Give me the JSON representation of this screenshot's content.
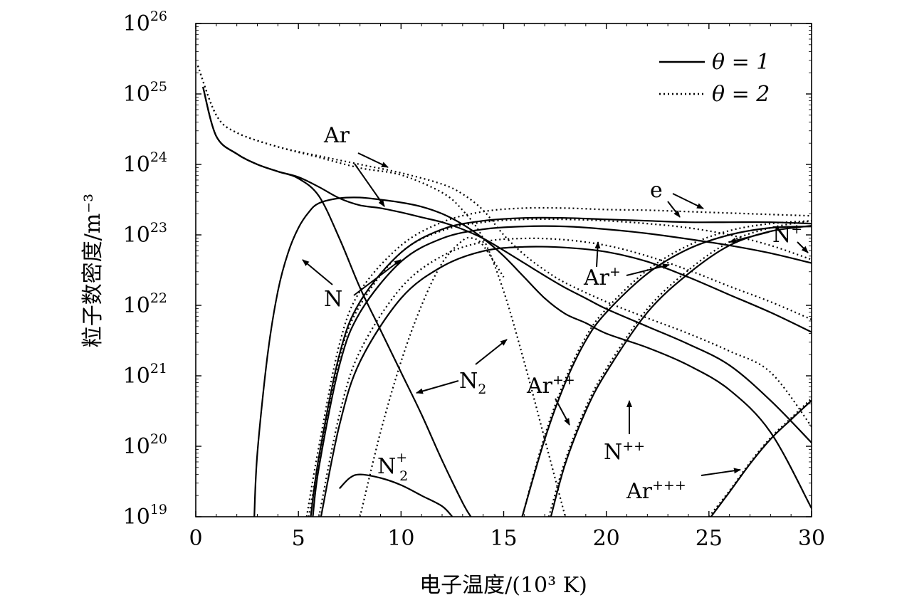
{
  "chart_data": {
    "type": "line",
    "xlabel": "电子温度/(10³ K)",
    "ylabel": "粒子数密度/m⁻³",
    "xlim": [
      0,
      30
    ],
    "ylim_log10": [
      19,
      26
    ],
    "y_scale": "log",
    "grid": false,
    "legend_position": "top-right",
    "legend": [
      {
        "label": "θ = 1",
        "style": "solid"
      },
      {
        "label": "θ = 2",
        "style": "dotted"
      }
    ],
    "x_ticks": [
      "0",
      "5",
      "10",
      "15",
      "20",
      "25",
      "30"
    ],
    "y_ticks": [
      {
        "base": "10",
        "exp": "19"
      },
      {
        "base": "10",
        "exp": "20"
      },
      {
        "base": "10",
        "exp": "21"
      },
      {
        "base": "10",
        "exp": "22"
      },
      {
        "base": "10",
        "exp": "23"
      },
      {
        "base": "10",
        "exp": "24"
      },
      {
        "base": "10",
        "exp": "25"
      },
      {
        "base": "10",
        "exp": "26"
      }
    ],
    "annotations": [
      {
        "text": "Ar",
        "sup": ""
      },
      {
        "text": "e",
        "sup": ""
      },
      {
        "text": "N",
        "sup": "+"
      },
      {
        "text": "Ar",
        "sup": "+"
      },
      {
        "text": "N",
        "sup": ""
      },
      {
        "text": "N",
        "sub": "2"
      },
      {
        "text": "Ar",
        "sup": "++"
      },
      {
        "text": "N",
        "sup": "++"
      },
      {
        "text": "N",
        "sup": "+",
        "sub": "2"
      },
      {
        "text": "Ar",
        "sup": "+++"
      }
    ],
    "series": [
      {
        "species": "N",
        "theta": 1,
        "points": [
          [
            0.35,
            25.1
          ],
          [
            1,
            24.4
          ],
          [
            2,
            24.15
          ],
          [
            3,
            24.0
          ],
          [
            4,
            23.9
          ],
          [
            5,
            23.8
          ],
          [
            6,
            23.55
          ],
          [
            7,
            22.95
          ],
          [
            8,
            22.25
          ],
          [
            9,
            21.65
          ],
          [
            10,
            21.05
          ],
          [
            11,
            20.45
          ],
          [
            12,
            19.8
          ],
          [
            13,
            19.2
          ],
          [
            13.4,
            19.0
          ]
        ]
      },
      {
        "species": "N",
        "theta": 2,
        "points": [
          [
            0.1,
            25.4
          ],
          [
            1,
            24.7
          ],
          [
            2,
            24.45
          ],
          [
            4,
            24.25
          ],
          [
            6,
            24.1
          ],
          [
            8,
            23.95
          ],
          [
            10,
            23.85
          ],
          [
            12,
            23.6
          ],
          [
            13,
            23.35
          ],
          [
            14,
            22.95
          ],
          [
            15,
            22.2
          ],
          [
            16,
            21.2
          ],
          [
            17,
            20.1
          ],
          [
            18,
            19.0
          ]
        ]
      },
      {
        "species": "Ar",
        "theta": 1,
        "points": [
          [
            0.35,
            25.1
          ],
          [
            1,
            24.4
          ],
          [
            2,
            24.15
          ],
          [
            3,
            24.0
          ],
          [
            4,
            23.9
          ],
          [
            5,
            23.82
          ],
          [
            6,
            23.68
          ],
          [
            7,
            23.52
          ],
          [
            8,
            23.42
          ],
          [
            9,
            23.38
          ],
          [
            10,
            23.32
          ],
          [
            11,
            23.25
          ],
          [
            12,
            23.18
          ],
          [
            13,
            23.08
          ],
          [
            14,
            22.95
          ],
          [
            15,
            22.78
          ],
          [
            16,
            22.6
          ],
          [
            17,
            22.42
          ],
          [
            18,
            22.25
          ],
          [
            19,
            22.1
          ],
          [
            20,
            21.95
          ],
          [
            22,
            21.7
          ],
          [
            24,
            21.45
          ],
          [
            26,
            21.15
          ],
          [
            28,
            20.65
          ],
          [
            30,
            20.05
          ]
        ]
      },
      {
        "species": "Ar",
        "theta": 2,
        "points": [
          [
            0.1,
            25.4
          ],
          [
            1,
            24.7
          ],
          [
            2,
            24.45
          ],
          [
            4,
            24.25
          ],
          [
            6,
            24.12
          ],
          [
            8,
            24.0
          ],
          [
            10,
            23.88
          ],
          [
            12,
            23.72
          ],
          [
            13,
            23.58
          ],
          [
            14,
            23.35
          ],
          [
            15,
            23.0
          ],
          [
            16,
            22.72
          ],
          [
            17,
            22.5
          ],
          [
            18,
            22.32
          ],
          [
            20,
            22.05
          ],
          [
            22,
            21.82
          ],
          [
            24,
            21.6
          ],
          [
            26,
            21.35
          ],
          [
            28,
            21.05
          ],
          [
            30,
            20.28
          ]
        ]
      },
      {
        "species": "N2",
        "theta": 1,
        "points": [
          [
            2.85,
            19.0
          ],
          [
            3,
            19.9
          ],
          [
            3.5,
            21.3
          ],
          [
            4,
            22.2
          ],
          [
            4.5,
            22.75
          ],
          [
            5,
            23.1
          ],
          [
            5.5,
            23.32
          ],
          [
            6,
            23.45
          ],
          [
            7,
            23.52
          ],
          [
            8,
            23.53
          ],
          [
            9,
            23.5
          ],
          [
            10,
            23.46
          ],
          [
            11,
            23.4
          ],
          [
            12,
            23.3
          ],
          [
            13,
            23.15
          ],
          [
            14,
            22.95
          ],
          [
            15,
            22.7
          ],
          [
            16,
            22.4
          ],
          [
            17,
            22.1
          ],
          [
            18,
            21.88
          ],
          [
            19,
            21.75
          ],
          [
            20,
            21.6
          ],
          [
            22,
            21.4
          ],
          [
            24,
            21.15
          ],
          [
            26,
            20.8
          ],
          [
            28,
            20.2
          ],
          [
            30,
            19.12
          ]
        ]
      },
      {
        "species": "N2+",
        "theta": 1,
        "points": [
          [
            7,
            19.4
          ],
          [
            7.5,
            19.55
          ],
          [
            8,
            19.6
          ],
          [
            9,
            19.55
          ],
          [
            10,
            19.45
          ],
          [
            11,
            19.3
          ],
          [
            12,
            19.15
          ],
          [
            12.5,
            19.0
          ]
        ]
      },
      {
        "species": "N2+",
        "theta": 2,
        "points": [
          [
            8,
            19.0
          ],
          [
            9,
            20.2
          ],
          [
            10,
            21.2
          ],
          [
            11,
            22.0
          ],
          [
            12,
            22.6
          ],
          [
            13,
            22.92
          ],
          [
            13.5,
            22.95
          ],
          [
            14,
            22.85
          ],
          [
            15,
            22.4
          ]
        ]
      },
      {
        "species": "e",
        "theta": 1,
        "points": [
          [
            5.6,
            19.0
          ],
          [
            6,
            19.85
          ],
          [
            7,
            21.3
          ],
          [
            8,
            22.05
          ],
          [
            10,
            22.75
          ],
          [
            12,
            23.08
          ],
          [
            14,
            23.2
          ],
          [
            16,
            23.24
          ],
          [
            18,
            23.24
          ],
          [
            20,
            23.22
          ],
          [
            22,
            23.2
          ],
          [
            24,
            23.18
          ],
          [
            26,
            23.18
          ],
          [
            28,
            23.18
          ],
          [
            30,
            23.16
          ]
        ]
      },
      {
        "species": "e",
        "theta": 2,
        "points": [
          [
            5.4,
            19.0
          ],
          [
            6,
            20.0
          ],
          [
            7,
            21.45
          ],
          [
            8,
            22.2
          ],
          [
            10,
            22.85
          ],
          [
            12,
            23.18
          ],
          [
            14,
            23.33
          ],
          [
            16,
            23.38
          ],
          [
            18,
            23.38
          ],
          [
            20,
            23.36
          ],
          [
            22,
            23.35
          ],
          [
            24,
            23.33
          ],
          [
            26,
            23.31
          ],
          [
            28,
            23.29
          ],
          [
            30,
            23.27
          ]
        ]
      },
      {
        "species": "N+",
        "theta": 1,
        "points": [
          [
            5.7,
            19.0
          ],
          [
            6,
            19.7
          ],
          [
            7,
            21.15
          ],
          [
            8,
            21.9
          ],
          [
            10,
            22.62
          ],
          [
            12,
            22.95
          ],
          [
            14,
            23.08
          ],
          [
            16,
            23.12
          ],
          [
            18,
            23.12
          ],
          [
            20,
            23.08
          ],
          [
            22,
            23.02
          ],
          [
            24,
            22.94
          ],
          [
            26,
            22.85
          ],
          [
            28,
            22.74
          ],
          [
            30,
            22.6
          ]
        ]
      },
      {
        "species": "N+",
        "theta": 2,
        "points": [
          [
            5.5,
            19.0
          ],
          [
            6,
            19.8
          ],
          [
            7,
            21.25
          ],
          [
            8,
            22.0
          ],
          [
            10,
            22.75
          ],
          [
            12,
            23.06
          ],
          [
            14,
            23.18
          ],
          [
            16,
            23.22
          ],
          [
            18,
            23.22
          ],
          [
            20,
            23.2
          ],
          [
            22,
            23.16
          ],
          [
            24,
            23.1
          ],
          [
            26,
            23.0
          ],
          [
            28,
            22.85
          ],
          [
            30,
            22.65
          ]
        ]
      },
      {
        "species": "Ar+",
        "theta": 1,
        "points": [
          [
            6.1,
            19.0
          ],
          [
            7,
            20.3
          ],
          [
            8,
            21.2
          ],
          [
            10,
            22.1
          ],
          [
            12,
            22.55
          ],
          [
            14,
            22.77
          ],
          [
            16,
            22.83
          ],
          [
            18,
            22.82
          ],
          [
            20,
            22.76
          ],
          [
            22,
            22.62
          ],
          [
            24,
            22.4
          ],
          [
            26,
            22.15
          ],
          [
            28,
            21.9
          ],
          [
            30,
            21.62
          ]
        ]
      },
      {
        "species": "Ar+",
        "theta": 2,
        "points": [
          [
            6.0,
            19.0
          ],
          [
            7,
            20.45
          ],
          [
            8,
            21.35
          ],
          [
            10,
            22.25
          ],
          [
            12,
            22.7
          ],
          [
            14,
            22.9
          ],
          [
            16,
            22.95
          ],
          [
            18,
            22.93
          ],
          [
            20,
            22.85
          ],
          [
            22,
            22.7
          ],
          [
            24,
            22.5
          ],
          [
            26,
            22.27
          ],
          [
            28,
            22.05
          ],
          [
            30,
            21.8
          ]
        ]
      },
      {
        "species": "Ar++",
        "theta": 1,
        "points": [
          [
            15.9,
            19.0
          ],
          [
            17,
            20.1
          ],
          [
            18,
            20.9
          ],
          [
            19,
            21.5
          ],
          [
            20,
            21.9
          ],
          [
            22,
            22.45
          ],
          [
            24,
            22.8
          ],
          [
            26,
            23.0
          ],
          [
            28,
            23.1
          ],
          [
            30,
            23.12
          ]
        ]
      },
      {
        "species": "Ar++",
        "theta": 2,
        "points": [
          [
            15.9,
            19.0
          ],
          [
            17,
            20.15
          ],
          [
            18,
            20.95
          ],
          [
            19,
            21.55
          ],
          [
            20,
            21.95
          ],
          [
            22,
            22.5
          ],
          [
            24,
            22.85
          ],
          [
            26,
            23.06
          ],
          [
            28,
            23.16
          ],
          [
            30,
            23.2
          ]
        ]
      },
      {
        "species": "N++",
        "theta": 1,
        "points": [
          [
            17.3,
            19.0
          ],
          [
            18,
            19.75
          ],
          [
            19,
            20.5
          ],
          [
            20,
            21.05
          ],
          [
            22,
            21.9
          ],
          [
            24,
            22.45
          ],
          [
            26,
            22.85
          ],
          [
            28,
            23.05
          ],
          [
            30,
            23.13
          ]
        ]
      },
      {
        "species": "N++",
        "theta": 2,
        "points": [
          [
            17.2,
            19.0
          ],
          [
            18,
            19.8
          ],
          [
            19,
            20.55
          ],
          [
            20,
            21.1
          ],
          [
            22,
            21.95
          ],
          [
            24,
            22.5
          ],
          [
            26,
            22.9
          ],
          [
            28,
            23.1
          ],
          [
            30,
            23.2
          ]
        ]
      },
      {
        "species": "Ar+++",
        "theta": 1,
        "points": [
          [
            25.1,
            19.0
          ],
          [
            26,
            19.35
          ],
          [
            27,
            19.75
          ],
          [
            28,
            20.1
          ],
          [
            29,
            20.38
          ],
          [
            30,
            20.65
          ]
        ]
      },
      {
        "species": "Ar+++",
        "theta": 2,
        "points": [
          [
            25.0,
            19.0
          ],
          [
            26,
            19.37
          ],
          [
            27,
            19.77
          ],
          [
            28,
            20.12
          ],
          [
            29,
            20.4
          ],
          [
            30,
            20.68
          ]
        ]
      }
    ]
  }
}
